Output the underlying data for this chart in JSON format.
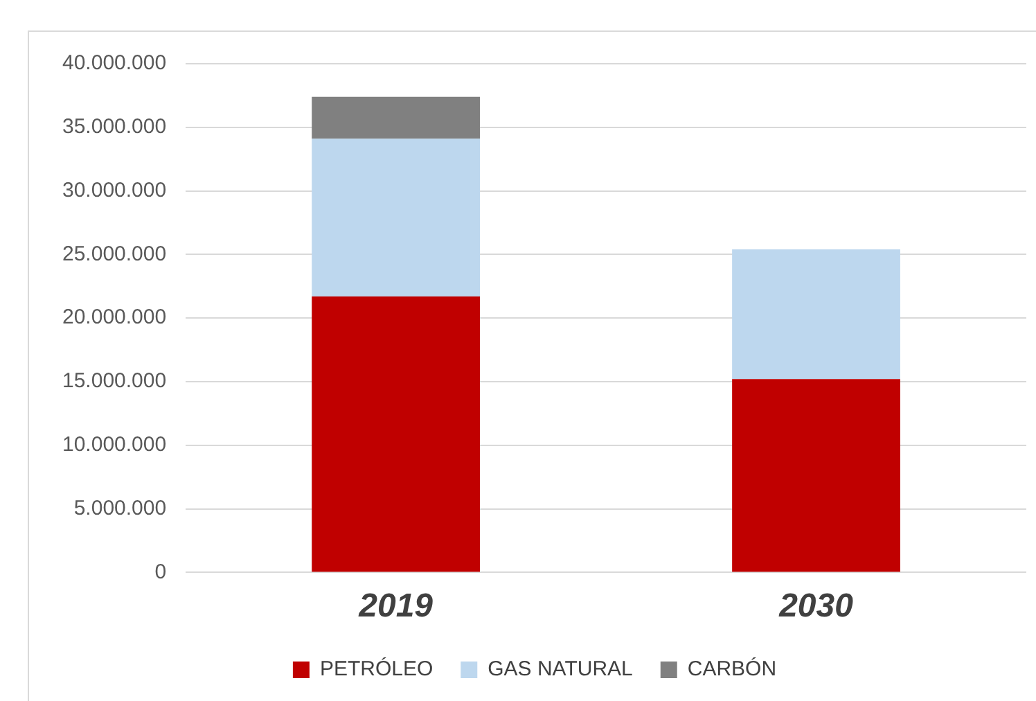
{
  "chart_data": {
    "type": "bar",
    "stacked": true,
    "categories": [
      "2019",
      "2030"
    ],
    "series": [
      {
        "name": "PETRÓLEO",
        "color": "#c00000",
        "values": [
          21700000,
          15200000
        ]
      },
      {
        "name": "GAS NATURAL",
        "color": "#bdd7ee",
        "values": [
          12400000,
          10200000
        ]
      },
      {
        "name": "CARBÓN",
        "color": "#808080",
        "values": [
          3300000,
          0
        ]
      }
    ],
    "ylim": [
      0,
      40000000
    ],
    "yticks": [
      {
        "value": 0,
        "label": "0"
      },
      {
        "value": 5000000,
        "label": "5.000.000"
      },
      {
        "value": 10000000,
        "label": "10.000.000"
      },
      {
        "value": 15000000,
        "label": "15.000.000"
      },
      {
        "value": 20000000,
        "label": "20.000.000"
      },
      {
        "value": 25000000,
        "label": "25.000.000"
      },
      {
        "value": 30000000,
        "label": "30.000.000"
      },
      {
        "value": 35000000,
        "label": "35.000.000"
      },
      {
        "value": 40000000,
        "label": "40.000.000"
      }
    ],
    "grid": "y",
    "legend": "bottom"
  }
}
